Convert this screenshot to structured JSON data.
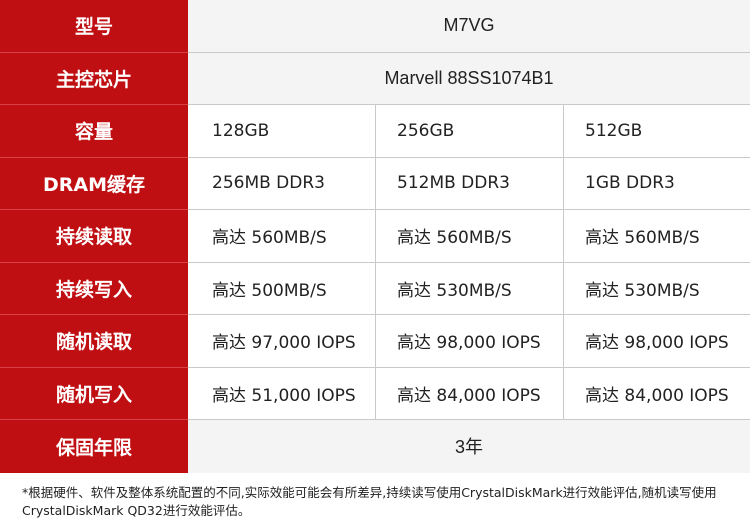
{
  "colors": {
    "label_bg": "#c00f12",
    "label_text": "#ffffff",
    "span_bg": "#f4f4f4",
    "border": "#c9c9c9"
  },
  "rows": [
    {
      "label": "型号",
      "span": "M7VG"
    },
    {
      "label": "主控芯片",
      "span": "Marvell 88SS1074B1"
    },
    {
      "label": "容量",
      "values": [
        "128GB",
        "256GB",
        "512GB"
      ]
    },
    {
      "label": "DRAM缓存",
      "values": [
        "256MB DDR3",
        "512MB DDR3",
        "1GB DDR3"
      ]
    },
    {
      "label": "持续读取",
      "values": [
        "高达 560MB/S",
        "高达 560MB/S",
        "高达 560MB/S"
      ]
    },
    {
      "label": "持续写入",
      "values": [
        "高达 500MB/S",
        "高达 530MB/S",
        "高达 530MB/S"
      ]
    },
    {
      "label": "随机读取",
      "values": [
        "高达 97,000 IOPS",
        "高达 98,000 IOPS",
        "高达 98,000 IOPS"
      ]
    },
    {
      "label": "随机写入",
      "values": [
        "高达 51,000 IOPS",
        "高达 84,000 IOPS",
        "高达 84,000 IOPS"
      ]
    },
    {
      "label": "保固年限",
      "span": "3年"
    }
  ],
  "footnote": "*根据硬件、软件及整体系统配置的不同,实际效能可能会有所差异,持续读写使用CrystalDiskMark进行效能评估,随机读写使用CrystalDiskMark QD32进行效能评估。"
}
